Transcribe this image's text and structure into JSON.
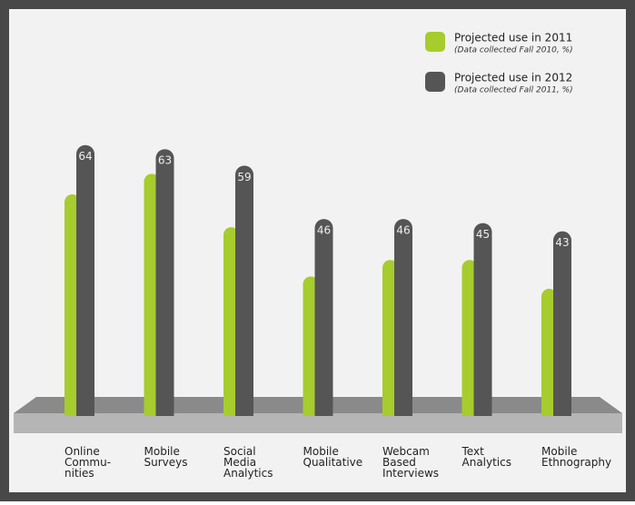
{
  "chart_data": {
    "type": "bar",
    "categories": [
      "Online\nCommu-\nnities",
      "Mobile\nSurveys",
      "Social\nMedia\nAnalytics",
      "Mobile\nQualitative",
      "Webcam\nBased\nInterviews",
      "Text\nAnalytics",
      "Mobile\nEthnography"
    ],
    "series": [
      {
        "name": "Projected use in 2011",
        "note": "(Data collected Fall 2010, %)",
        "color": "#a6cc2e",
        "show_labels": false,
        "values": [
          52,
          57,
          44,
          32,
          36,
          36,
          29
        ]
      },
      {
        "name": "Projected use in 2012",
        "note": "(Data collected Fall 2011, %)",
        "color": "#555555",
        "show_labels": true,
        "values": [
          64,
          63,
          59,
          46,
          46,
          45,
          43
        ]
      }
    ]
  }
}
